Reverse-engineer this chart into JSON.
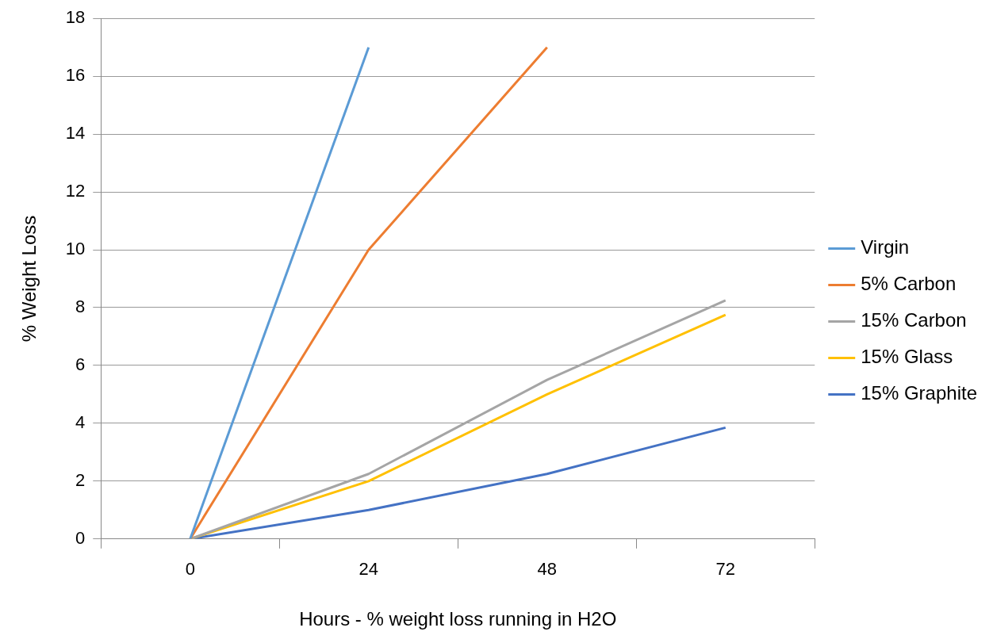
{
  "chart_data": {
    "type": "line",
    "xlabel": "Hours - % weight loss running in H2O",
    "ylabel": "% Weight Loss",
    "categories": [
      "0",
      "24",
      "48",
      "72"
    ],
    "series": [
      {
        "name": "Virgin",
        "color": "#5b9bd5",
        "values": [
          0,
          17,
          null,
          null
        ]
      },
      {
        "name": "5% Carbon",
        "color": "#ed7d31",
        "values": [
          0,
          10,
          17,
          null
        ]
      },
      {
        "name": "15% Carbon",
        "color": "#a5a5a5",
        "values": [
          0,
          2.25,
          5.5,
          8.25
        ]
      },
      {
        "name": "15% Glass",
        "color": "#ffc000",
        "values": [
          0,
          2,
          5,
          7.75
        ]
      },
      {
        "name": "15% Graphite",
        "color": "#4472c4",
        "values": [
          0,
          1,
          2.25,
          3.85
        ]
      }
    ],
    "ylim": [
      0,
      18
    ],
    "yticks": [
      0,
      2,
      4,
      6,
      8,
      10,
      12,
      14,
      16,
      18
    ],
    "grid": "y",
    "legend": "right",
    "marker": "none",
    "line_style": "solid"
  }
}
